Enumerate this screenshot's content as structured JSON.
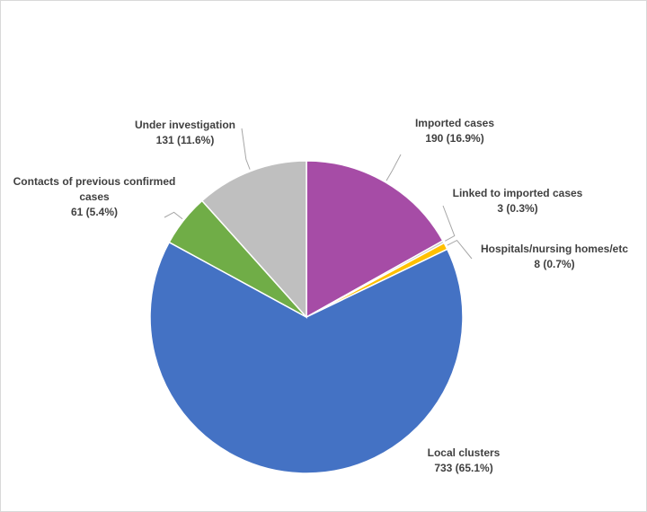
{
  "chart_data": {
    "type": "pie",
    "title": "",
    "start_angle_deg": 0,
    "direction": "clockwise",
    "series": [
      {
        "values": [
          190,
          3,
          8,
          733,
          61,
          131
        ],
        "categories": [
          "Imported cases",
          "Linked to imported cases",
          "Hospitals/nursing  homes/etc",
          "Local clusters",
          "Contacts of previous confirmed cases",
          "Under investigation"
        ]
      }
    ],
    "slices": [
      {
        "name": "Imported cases",
        "value": 190,
        "percent": "16.9%",
        "color": "#a64ca6",
        "label": "Imported cases",
        "value_text": "190 (16.9%)"
      },
      {
        "name": "Linked to imported cases",
        "value": 3,
        "percent": "0.3%",
        "color": "#c9c9c9",
        "label": "Linked to imported cases",
        "value_text": "3 (0.3%)"
      },
      {
        "name": "Hospitals/nursing  homes/etc",
        "value": 8,
        "percent": "0.7%",
        "color": "#ffc000",
        "label": "Hospitals/nursing  homes/etc",
        "value_text": "8 (0.7%)"
      },
      {
        "name": "Local clusters",
        "value": 733,
        "percent": "65.1%",
        "color": "#4472c4",
        "label": "Local clusters",
        "value_text": "733 (65.1%)"
      },
      {
        "name": "Contacts of previous confirmed cases",
        "value": 61,
        "percent": "5.4%",
        "color": "#70ad47",
        "label_line1": "Contacts of previous confirmed",
        "label_line2": "cases",
        "value_text": "61 (5.4%)"
      },
      {
        "name": "Under investigation",
        "value": 131,
        "percent": "11.6%",
        "color": "#bfbfbf",
        "label": "Under investigation",
        "value_text": "131 (11.6%)"
      }
    ],
    "legend": "none",
    "slice_border_color": "#ffffff",
    "leader_line_color": "#a6a6a6"
  }
}
